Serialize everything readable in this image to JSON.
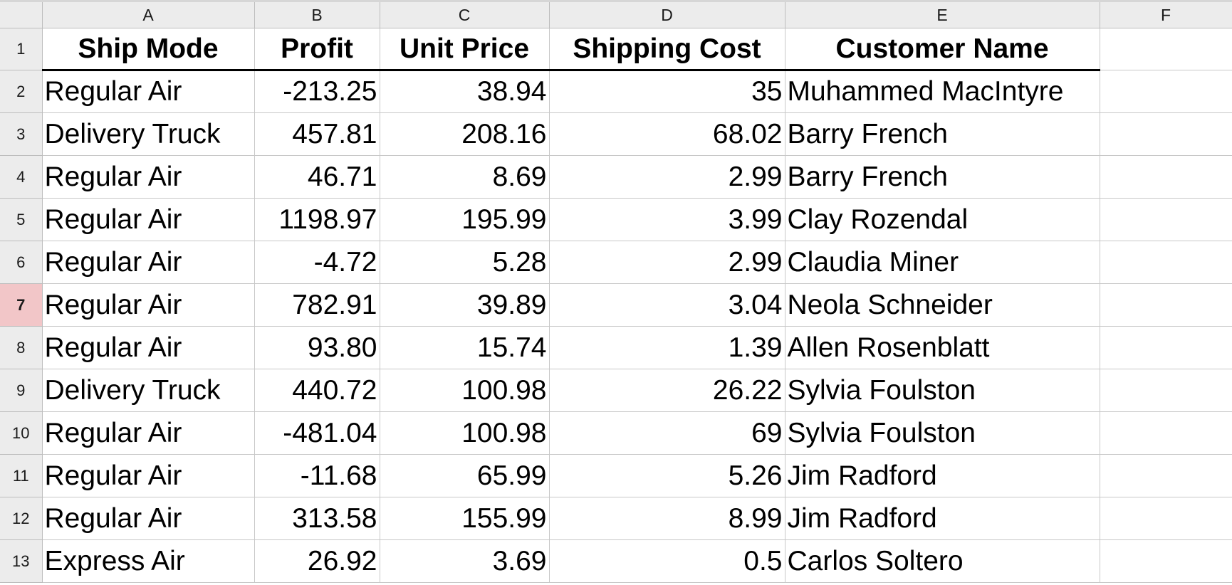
{
  "columns": [
    "A",
    "B",
    "C",
    "D",
    "E",
    "F"
  ],
  "active_row": 7,
  "header_row": {
    "row_number": "1",
    "cells": [
      "Ship Mode",
      "Profit",
      "Unit Price",
      "Shipping Cost",
      "Customer Name",
      ""
    ]
  },
  "rows": [
    {
      "row_number": "2",
      "cells": [
        "Regular Air",
        "-213.25",
        "38.94",
        "35",
        "Muhammed MacIntyre",
        ""
      ]
    },
    {
      "row_number": "3",
      "cells": [
        "Delivery Truck",
        "457.81",
        "208.16",
        "68.02",
        "Barry French",
        ""
      ]
    },
    {
      "row_number": "4",
      "cells": [
        "Regular Air",
        "46.71",
        "8.69",
        "2.99",
        "Barry French",
        ""
      ]
    },
    {
      "row_number": "5",
      "cells": [
        "Regular Air",
        "1198.97",
        "195.99",
        "3.99",
        "Clay Rozendal",
        ""
      ]
    },
    {
      "row_number": "6",
      "cells": [
        "Regular Air",
        "-4.72",
        "5.28",
        "2.99",
        "Claudia Miner",
        ""
      ]
    },
    {
      "row_number": "7",
      "cells": [
        "Regular Air",
        "782.91",
        "39.89",
        "3.04",
        "Neola Schneider",
        ""
      ]
    },
    {
      "row_number": "8",
      "cells": [
        "Regular Air",
        "93.80",
        "15.74",
        "1.39",
        "Allen Rosenblatt",
        ""
      ]
    },
    {
      "row_number": "9",
      "cells": [
        "Delivery Truck",
        "440.72",
        "100.98",
        "26.22",
        "Sylvia Foulston",
        ""
      ]
    },
    {
      "row_number": "10",
      "cells": [
        "Regular Air",
        "-481.04",
        "100.98",
        "69",
        "Sylvia Foulston",
        ""
      ]
    },
    {
      "row_number": "11",
      "cells": [
        "Regular Air",
        "-11.68",
        "65.99",
        "5.26",
        "Jim Radford",
        ""
      ]
    },
    {
      "row_number": "12",
      "cells": [
        "Regular Air",
        "313.58",
        "155.99",
        "8.99",
        "Jim Radford",
        ""
      ]
    },
    {
      "row_number": "13",
      "cells": [
        "Express Air",
        "26.92",
        "3.69",
        "0.5",
        "Carlos Soltero",
        ""
      ]
    }
  ],
  "colors": {
    "header_bg": "#ececec",
    "active_row_header_bg": "#f2c6c8",
    "gridline": "#c8c8c8"
  }
}
